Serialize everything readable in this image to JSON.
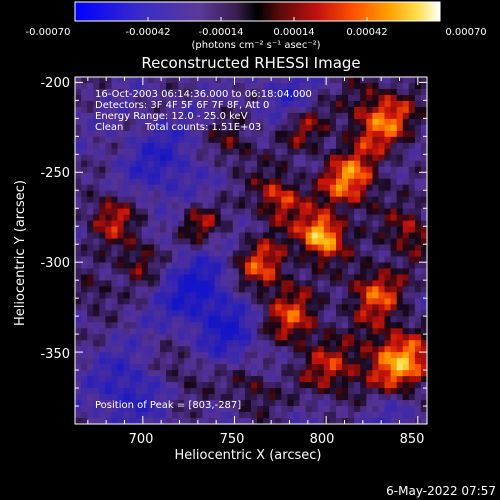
{
  "colorbar": {
    "tick_labels": [
      "-0.00070",
      "-0.00042",
      "-0.00014",
      "0.00014",
      "0.00042",
      "0.00070"
    ],
    "units_label": "(photons cm⁻² s⁻¹ asec⁻²)",
    "range": [
      -0.0007,
      0.0007
    ]
  },
  "image": {
    "title": "Reconstructed RHESSI Image",
    "time_range": "16-Oct-2003 06:14:36.000 to 06:18:04.000",
    "detectors": "Detectors: 3F 4F 5F 6F 7F 8F, Att 0",
    "energy_range": "Energy Range: 12.0 - 25.0 keV",
    "clean_label": "Clean",
    "total_counts": "Total counts: 1.51E+03",
    "peak_position": "Position of Peak = [803,-287]"
  },
  "axes": {
    "xlabel": "Heliocentric X (arcsec)",
    "ylabel": "Heliocentric Y (arcsec)",
    "x_range": [
      663,
      855
    ],
    "y_range": [
      -390,
      -197
    ],
    "x_ticks": [
      "700",
      "750",
      "800",
      "850"
    ],
    "y_ticks": [
      "-200",
      "-250",
      "-300",
      "-350"
    ]
  },
  "footer": {
    "timestamp": "6-May-2022 07:57"
  },
  "colors": {
    "background": "#000000",
    "foreground": "#ffffff"
  }
}
